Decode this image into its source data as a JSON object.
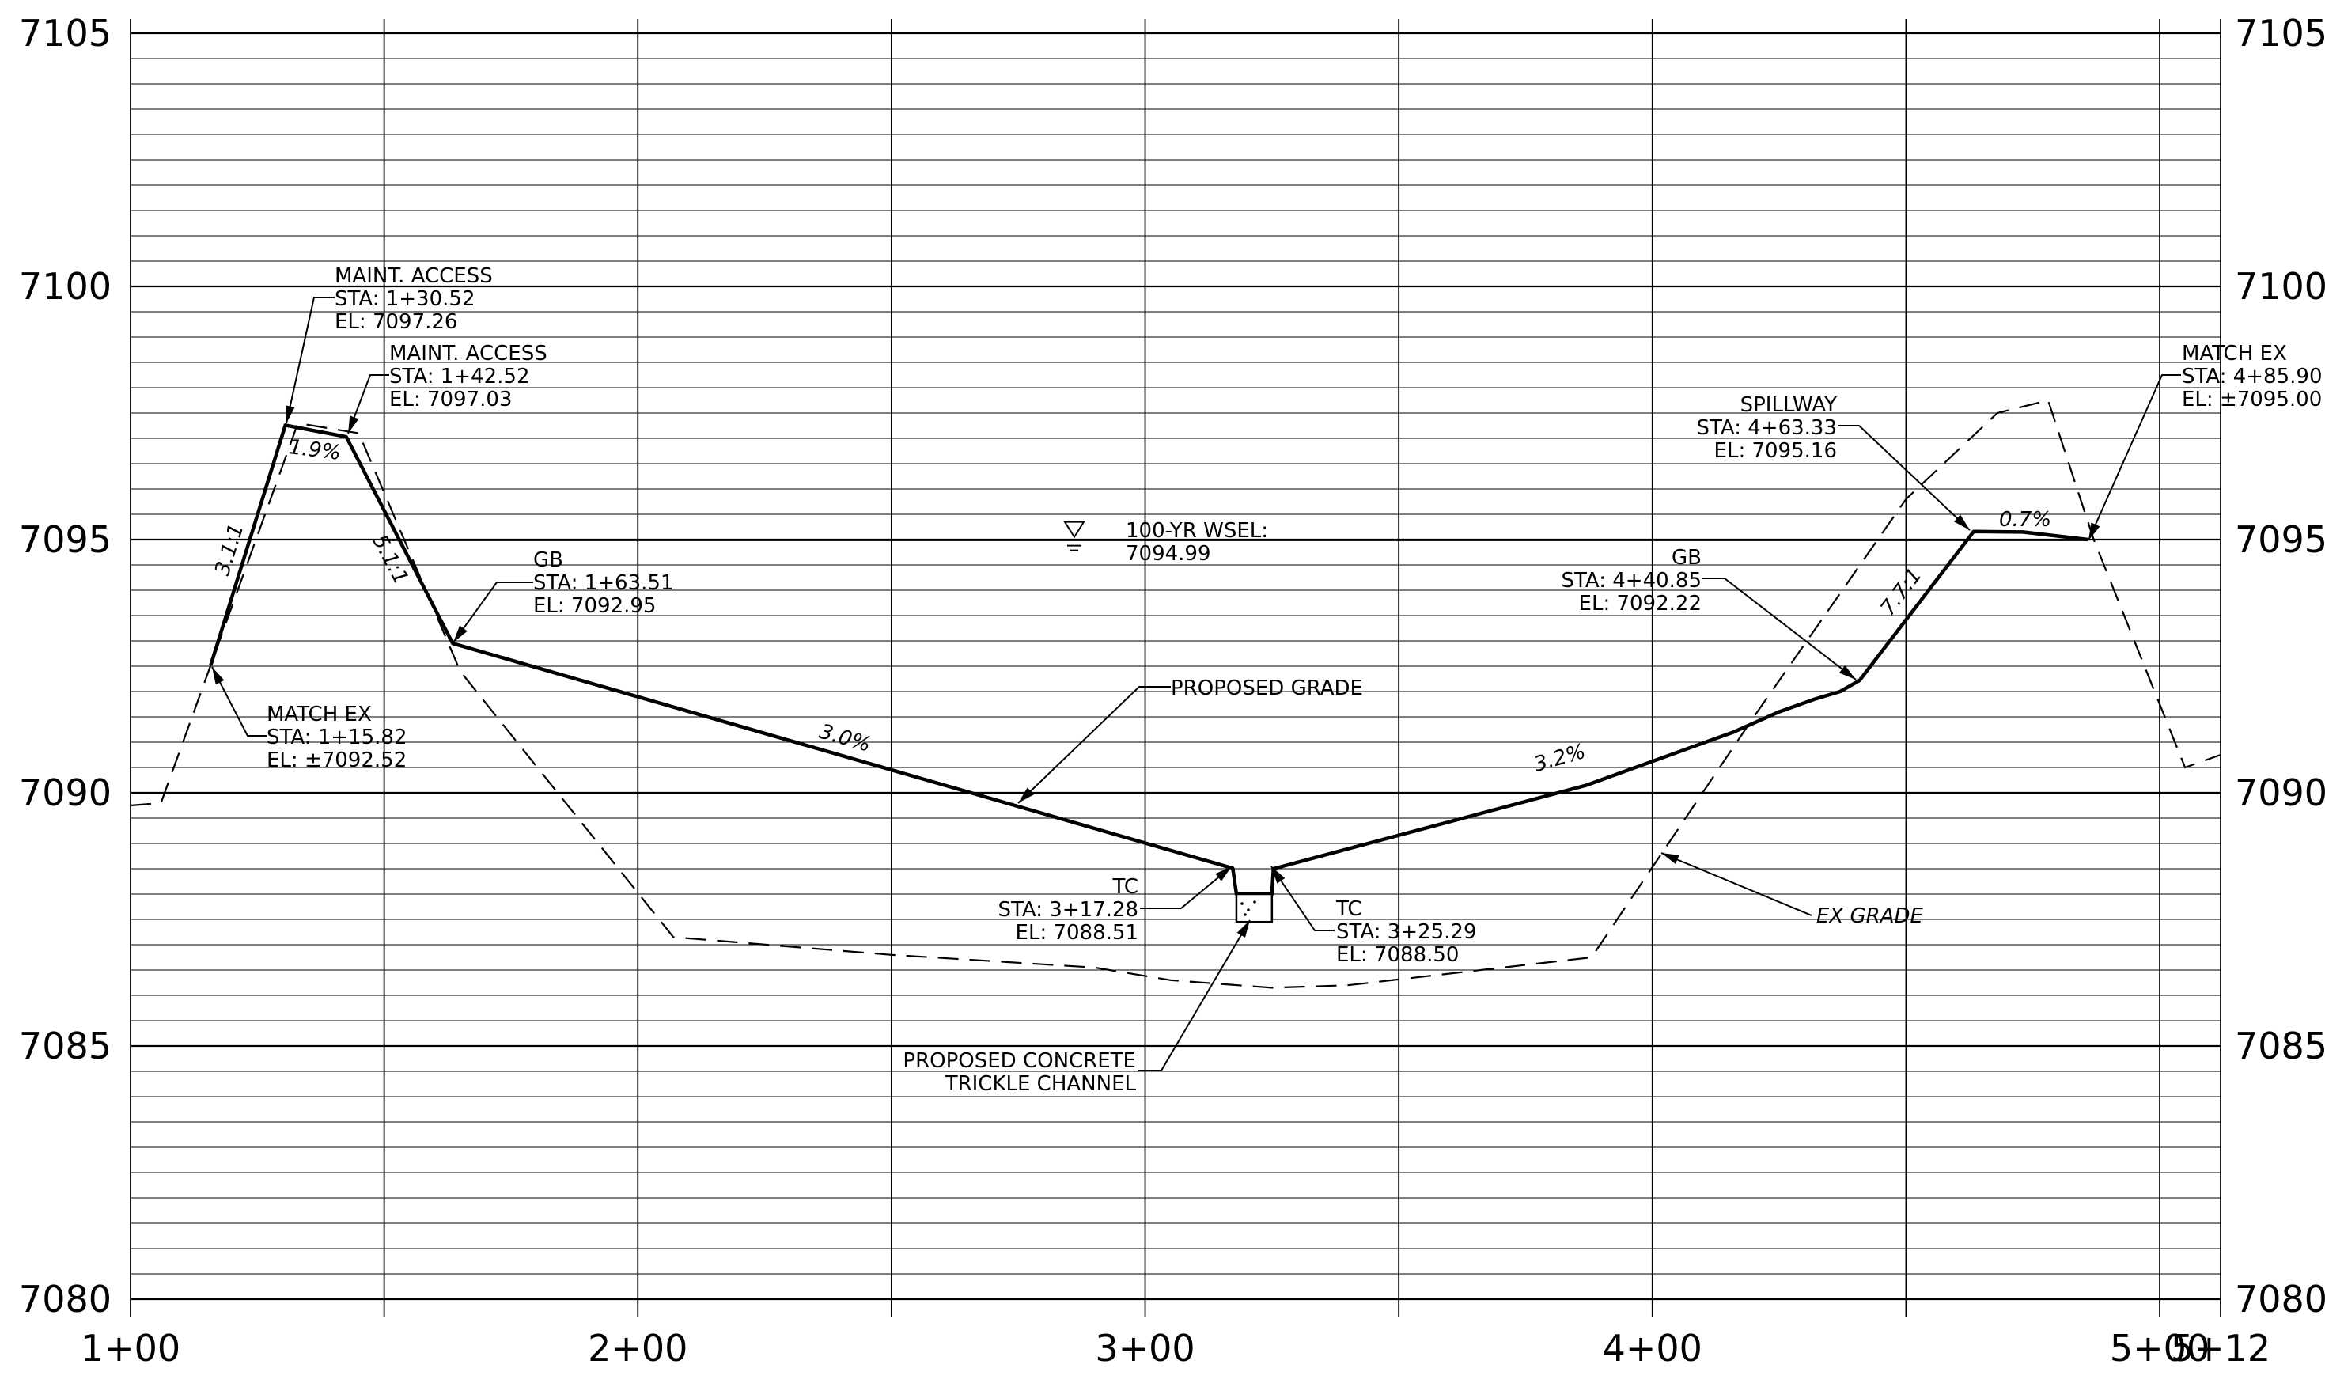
{
  "chart_data": {
    "type": "line",
    "title": "",
    "x_tick_labels": [
      "1+00",
      "2+00",
      "3+00",
      "4+00",
      "5+00",
      "5+12"
    ],
    "x_ticks_ft": [
      100,
      200,
      300,
      400,
      500,
      512
    ],
    "y_tick_labels": [
      "7080",
      "7085",
      "7090",
      "7095",
      "7100",
      "7105"
    ],
    "ylim": [
      7080,
      7105
    ],
    "xlim_ft": [
      100,
      512
    ],
    "grid": "minor every 0.5 ft elevation; vertical every 50 ft station",
    "series": [
      {
        "name": "PROPOSED GRADE",
        "style": "solid-thick",
        "points": [
          [
            115.82,
            7092.52
          ],
          [
            130.52,
            7097.26
          ],
          [
            142.52,
            7097.03
          ],
          [
            163.51,
            7092.95
          ],
          [
            317.28,
            7088.51
          ],
          [
            318.0,
            7088.0
          ],
          [
            325.0,
            7088.0
          ],
          [
            325.29,
            7088.5
          ],
          [
            387,
            7090.15
          ],
          [
            416,
            7091.2
          ],
          [
            425,
            7091.6
          ],
          [
            432,
            7091.85
          ],
          [
            437,
            7092.0
          ],
          [
            440.85,
            7092.22
          ],
          [
            463.33,
            7095.16
          ],
          [
            473,
            7095.15
          ],
          [
            485.9,
            7095.0
          ]
        ]
      },
      {
        "name": "EX GRADE",
        "style": "dashed",
        "points": [
          [
            100,
            7089.75
          ],
          [
            106,
            7089.8
          ],
          [
            115.82,
            7092.52
          ],
          [
            133,
            7097.3
          ],
          [
            145,
            7097.1
          ],
          [
            165,
            7092.4
          ],
          [
            207,
            7087.15
          ],
          [
            250,
            7086.8
          ],
          [
            290,
            7086.55
          ],
          [
            305,
            7086.3
          ],
          [
            325,
            7086.15
          ],
          [
            340,
            7086.2
          ],
          [
            388,
            7086.75
          ],
          [
            420,
            7091.5
          ],
          [
            450,
            7095.8
          ],
          [
            468,
            7097.5
          ],
          [
            478,
            7097.75
          ],
          [
            487,
            7095.0
          ],
          [
            505,
            7090.5
          ],
          [
            512,
            7090.75
          ]
        ]
      },
      {
        "name": "100-YR WSEL",
        "style": "solid-thin",
        "points": [
          [
            150,
            7094.99
          ],
          [
            485.9,
            7094.99
          ]
        ]
      }
    ],
    "channel_box": {
      "x": [
        318,
        325
      ],
      "y": [
        7087.45,
        7088.0
      ]
    },
    "annotations": [
      {
        "id": "maint1",
        "lines": [
          "MAINT. ACCESS",
          "STA: 1+30.52",
          "EL: 7097.26"
        ],
        "target": [
          130.52,
          7097.26
        ]
      },
      {
        "id": "maint2",
        "lines": [
          "MAINT. ACCESS",
          "STA: 1+42.52",
          "EL: 7097.03"
        ],
        "target": [
          142.52,
          7097.03
        ]
      },
      {
        "id": "gb1",
        "lines": [
          "GB",
          "STA: 1+63.51",
          "EL: 7092.95"
        ],
        "target": [
          163.51,
          7092.95
        ]
      },
      {
        "id": "matchex1",
        "lines": [
          "MATCH EX",
          "STA: 1+15.82",
          "EL: ±7092.52"
        ],
        "target": [
          115.82,
          7092.52
        ]
      },
      {
        "id": "wsel",
        "lines": [
          "100-YR WSEL:",
          "7094.99"
        ]
      },
      {
        "id": "propgrade",
        "lines": [
          "PROPOSED GRADE"
        ]
      },
      {
        "id": "tc1",
        "lines": [
          "TC",
          "STA: 3+17.28",
          "EL: 7088.51"
        ],
        "target": [
          317.28,
          7088.51
        ]
      },
      {
        "id": "tc2",
        "lines": [
          "TC",
          "STA: 3+25.29",
          "EL: 7088.50"
        ],
        "target": [
          325.29,
          7088.5
        ]
      },
      {
        "id": "trickle",
        "lines": [
          "PROPOSED CONCRETE",
          "TRICKLE CHANNEL"
        ]
      },
      {
        "id": "gb2",
        "lines": [
          "GB",
          "STA: 4+40.85",
          "EL: 7092.22"
        ],
        "target": [
          440.85,
          7092.22
        ]
      },
      {
        "id": "spillway",
        "lines": [
          "SPILLWAY",
          "STA: 4+63.33",
          "EL: 7095.16"
        ],
        "target": [
          463.33,
          7095.16
        ]
      },
      {
        "id": "matchex2",
        "lines": [
          "MATCH EX",
          "STA: 4+85.90",
          "EL: ±7095.00"
        ],
        "target": [
          485.9,
          7095.0
        ]
      },
      {
        "id": "exgrade",
        "lines": [
          "EX GRADE"
        ]
      }
    ],
    "slope_labels": [
      "3.1:1",
      "1.9%",
      "5.1:1",
      "3.0%",
      "3.2%",
      "7.7:1",
      "0.7%"
    ]
  }
}
